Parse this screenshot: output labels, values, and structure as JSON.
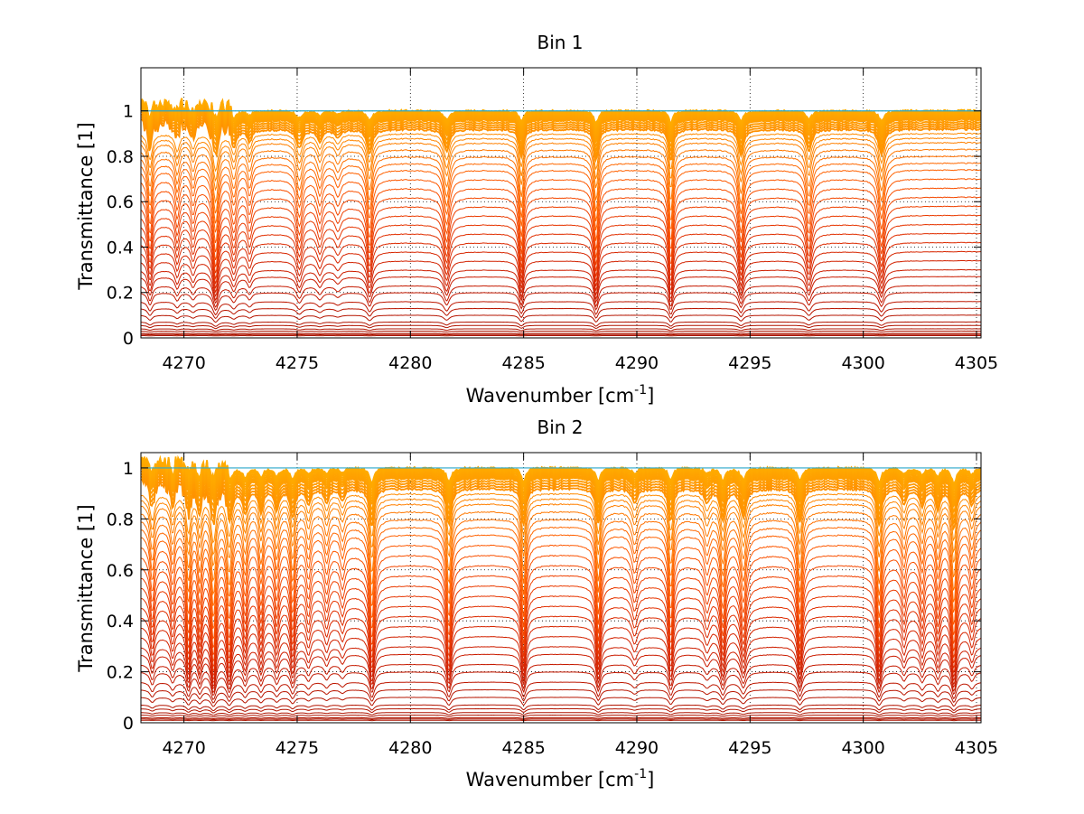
{
  "chart_data": [
    {
      "type": "line",
      "title": "Bin 1",
      "xlabel": "Wavenumber [cm",
      "xlabel_sup": "-1",
      "xlabel_end": "]",
      "ylabel": "Transmittance [1]",
      "xlim": [
        4268.1,
        4305.2
      ],
      "ylim": [
        0,
        1.19
      ],
      "xticks": [
        4270,
        4275,
        4280,
        4285,
        4290,
        4295,
        4300,
        4305
      ],
      "xtick_labels": [
        "4270",
        "4275",
        "4280",
        "4285",
        "4290",
        "4295",
        "4300",
        "4305"
      ],
      "yticks": [
        0,
        0.2,
        0.4,
        0.6,
        0.8,
        1
      ],
      "ytick_labels": [
        "0",
        "0.2",
        "0.4",
        "0.6",
        "0.8",
        "1"
      ],
      "grid": "dotted",
      "series_count": 46,
      "series_levels": [
        0.01,
        0.015,
        0.02,
        0.03,
        0.04,
        0.055,
        0.07,
        0.1,
        0.13,
        0.16,
        0.2,
        0.23,
        0.27,
        0.3,
        0.34,
        0.38,
        0.42,
        0.46,
        0.5,
        0.54,
        0.58,
        0.62,
        0.66,
        0.7,
        0.74,
        0.77,
        0.8,
        0.83,
        0.86,
        0.88,
        0.9,
        0.92,
        0.93,
        0.94,
        0.95,
        0.96,
        0.965,
        0.97,
        0.975,
        0.98,
        0.985,
        0.99,
        0.993,
        0.996,
        0.998,
        1.0
      ],
      "absorption_lines": [
        {
          "x": 4268.5,
          "depth": 0.55,
          "width": 0.12
        },
        {
          "x": 4269.7,
          "depth": 0.35,
          "width": 0.12
        },
        {
          "x": 4270.4,
          "depth": 0.3,
          "width": 0.12
        },
        {
          "x": 4271.4,
          "depth": 0.75,
          "width": 0.15
        },
        {
          "x": 4272.2,
          "depth": 0.4,
          "width": 0.15
        },
        {
          "x": 4272.9,
          "depth": 0.3,
          "width": 0.12
        },
        {
          "x": 4275.1,
          "depth": 0.45,
          "width": 0.15
        },
        {
          "x": 4276.0,
          "depth": 0.3,
          "width": 0.15
        },
        {
          "x": 4276.8,
          "depth": 0.2,
          "width": 0.15
        },
        {
          "x": 4278.2,
          "depth": 0.6,
          "width": 0.14
        },
        {
          "x": 4281.6,
          "depth": 0.55,
          "width": 0.15
        },
        {
          "x": 4284.9,
          "depth": 0.7,
          "width": 0.12
        },
        {
          "x": 4288.2,
          "depth": 0.75,
          "width": 0.12
        },
        {
          "x": 4291.5,
          "depth": 0.75,
          "width": 0.12
        },
        {
          "x": 4294.6,
          "depth": 0.65,
          "width": 0.14
        },
        {
          "x": 4297.6,
          "depth": 0.55,
          "width": 0.15
        },
        {
          "x": 4300.8,
          "depth": 0.6,
          "width": 0.15
        }
      ]
    },
    {
      "type": "line",
      "title": "Bin 2",
      "xlabel": "Wavenumber [cm",
      "xlabel_sup": "-1",
      "xlabel_end": "]",
      "ylabel": "Transmittance [1]",
      "xlim": [
        4268.1,
        4305.2
      ],
      "ylim": [
        0,
        1.06
      ],
      "xticks": [
        4270,
        4275,
        4280,
        4285,
        4290,
        4295,
        4300,
        4305
      ],
      "xtick_labels": [
        "4270",
        "4275",
        "4280",
        "4285",
        "4290",
        "4295",
        "4300",
        "4305"
      ],
      "yticks": [
        0,
        0.2,
        0.4,
        0.6,
        0.8,
        1
      ],
      "ytick_labels": [
        "0",
        "0.2",
        "0.4",
        "0.6",
        "0.8",
        "1"
      ],
      "grid": "dotted",
      "series_count": 46,
      "series_levels": [
        0.01,
        0.015,
        0.02,
        0.03,
        0.04,
        0.055,
        0.07,
        0.1,
        0.13,
        0.16,
        0.2,
        0.23,
        0.27,
        0.3,
        0.34,
        0.38,
        0.42,
        0.46,
        0.5,
        0.54,
        0.58,
        0.62,
        0.66,
        0.7,
        0.74,
        0.77,
        0.8,
        0.83,
        0.86,
        0.88,
        0.9,
        0.92,
        0.93,
        0.94,
        0.95,
        0.96,
        0.965,
        0.97,
        0.975,
        0.98,
        0.985,
        0.99,
        0.993,
        0.996,
        0.998,
        1.0
      ],
      "absorption_lines": [
        {
          "x": 4268.6,
          "depth": 0.5,
          "width": 0.12
        },
        {
          "x": 4269.5,
          "depth": 0.4,
          "width": 0.12
        },
        {
          "x": 4270.2,
          "depth": 0.7,
          "width": 0.12
        },
        {
          "x": 4270.7,
          "depth": 0.55,
          "width": 0.12
        },
        {
          "x": 4271.3,
          "depth": 0.85,
          "width": 0.14
        },
        {
          "x": 4272.0,
          "depth": 0.75,
          "width": 0.14
        },
        {
          "x": 4272.7,
          "depth": 0.5,
          "width": 0.12
        },
        {
          "x": 4273.4,
          "depth": 0.5,
          "width": 0.12
        },
        {
          "x": 4274.1,
          "depth": 0.45,
          "width": 0.12
        },
        {
          "x": 4274.8,
          "depth": 0.6,
          "width": 0.12
        },
        {
          "x": 4275.5,
          "depth": 0.35,
          "width": 0.12
        },
        {
          "x": 4276.3,
          "depth": 0.3,
          "width": 0.12
        },
        {
          "x": 4277.0,
          "depth": 0.25,
          "width": 0.12
        },
        {
          "x": 4278.3,
          "depth": 0.8,
          "width": 0.13
        },
        {
          "x": 4281.7,
          "depth": 0.78,
          "width": 0.13
        },
        {
          "x": 4285.0,
          "depth": 0.78,
          "width": 0.12
        },
        {
          "x": 4288.3,
          "depth": 0.75,
          "width": 0.12
        },
        {
          "x": 4289.9,
          "depth": 0.3,
          "width": 0.15
        },
        {
          "x": 4291.5,
          "depth": 0.7,
          "width": 0.12
        },
        {
          "x": 4293.1,
          "depth": 0.3,
          "width": 0.15
        },
        {
          "x": 4293.8,
          "depth": 0.65,
          "width": 0.14
        },
        {
          "x": 4294.7,
          "depth": 0.6,
          "width": 0.16
        },
        {
          "x": 4297.2,
          "depth": 0.75,
          "width": 0.13
        },
        {
          "x": 4300.7,
          "depth": 0.78,
          "width": 0.13
        },
        {
          "x": 4301.8,
          "depth": 0.35,
          "width": 0.12
        },
        {
          "x": 4302.6,
          "depth": 0.4,
          "width": 0.12
        },
        {
          "x": 4303.3,
          "depth": 0.45,
          "width": 0.12
        },
        {
          "x": 4304.0,
          "depth": 0.85,
          "width": 0.13
        },
        {
          "x": 4304.8,
          "depth": 0.35,
          "width": 0.12
        }
      ]
    }
  ]
}
